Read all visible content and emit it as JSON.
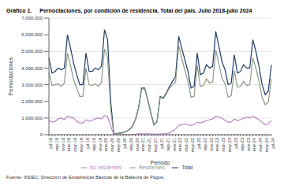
{
  "chart_data": {
    "type": "line",
    "title": "Gráfico 1.",
    "subtitle": "Pernoctaciones, por condición de residencia. Total del país. Julio 2018-julio 2024",
    "x_label": "Período",
    "y_label": "Pernoctaciones",
    "source": "Fuente: INDEC, Dirección de Estadísticas Básicas de la Balanza de Pagos.",
    "categories": [
      "jul-18",
      null,
      "sep-18",
      null,
      "nov-18",
      null,
      "ene-19",
      null,
      "mar-19",
      null,
      "may-19",
      null,
      "jul-19",
      null,
      "sep-19",
      null,
      "nov-19",
      null,
      "ene-20",
      null,
      "mar-20",
      null,
      "may-20",
      null,
      "jul-20",
      null,
      "sep-20",
      null,
      "nov-20",
      null,
      "ene-21",
      null,
      "mar-21",
      null,
      "may-21",
      null,
      "jul-21",
      null,
      "sep-21",
      null,
      "nov-21",
      null,
      "ene-22",
      null,
      "mar-22",
      null,
      "may-22",
      null,
      "jul-22",
      null,
      "sep-22",
      null,
      "nov-22",
      null,
      "ene-23",
      null,
      "mar-23",
      null,
      "may-23",
      null,
      "jul-23",
      null,
      "sep-23",
      null,
      "nov-23",
      null,
      "ene-24",
      null,
      "mar-24",
      null,
      "may-24",
      null,
      "jul-24"
    ],
    "series": [
      {
        "name": "Total",
        "color": "#1f3864",
        "values": [
          4600000,
          3700000,
          3800000,
          4000000,
          3900000,
          4000000,
          6000000,
          5200000,
          4300000,
          3600000,
          3000000,
          3000000,
          4900000,
          3800000,
          3800000,
          4000000,
          3900000,
          4100000,
          6300000,
          5700000,
          2000000,
          50000,
          70000,
          100000,
          120000,
          200000,
          300000,
          500000,
          900000,
          1600000,
          2800000,
          2800000,
          2100000,
          1300000,
          600000,
          800000,
          2300000,
          2200000,
          2500000,
          2900000,
          3200000,
          3500000,
          5900000,
          5200000,
          4500000,
          3800000,
          2800000,
          2900000,
          4900000,
          3600000,
          3700000,
          4200000,
          4000000,
          4100000,
          6200000,
          5300000,
          4400000,
          3900000,
          3000000,
          3100000,
          4800000,
          3700000,
          3800000,
          4200000,
          4000000,
          4000000,
          5700000,
          5000000,
          4100000,
          3000000,
          2400000,
          2600000,
          4200000
        ]
      },
      {
        "name": "Residentes",
        "color": "#8c9a88",
        "values": [
          3750000,
          2950000,
          3000000,
          3050000,
          2900000,
          3100000,
          4900000,
          4150000,
          3300000,
          2800000,
          2300000,
          2300000,
          4000000,
          3000000,
          2950000,
          3050000,
          2900000,
          3150000,
          5150000,
          4600000,
          1500000,
          40000,
          60000,
          90000,
          110000,
          190000,
          290000,
          480000,
          870000,
          1550000,
          2740000,
          2750000,
          2050000,
          1260000,
          570000,
          770000,
          2260000,
          2150000,
          2440000,
          2800000,
          3000000,
          3150000,
          5350000,
          4600000,
          3850000,
          3200000,
          2250000,
          2300000,
          4150000,
          2900000,
          2950000,
          3350000,
          3100000,
          3150000,
          5100000,
          4250000,
          3400000,
          3050000,
          2250000,
          2350000,
          3850000,
          2850000,
          2900000,
          3200000,
          2950000,
          3000000,
          4600000,
          4000000,
          3200000,
          2250000,
          1800000,
          1950000,
          3350000
        ]
      },
      {
        "name": "No residentes",
        "color": "#b48ac0",
        "values": [
          850000,
          750000,
          800000,
          950000,
          1000000,
          900000,
          1100000,
          1050000,
          1000000,
          800000,
          700000,
          700000,
          900000,
          800000,
          850000,
          950000,
          1000000,
          950000,
          1150000,
          1100000,
          500000,
          10000,
          10000,
          10000,
          10000,
          10000,
          10000,
          20000,
          30000,
          50000,
          60000,
          50000,
          50000,
          40000,
          30000,
          30000,
          40000,
          50000,
          60000,
          100000,
          200000,
          350000,
          550000,
          600000,
          650000,
          600000,
          550000,
          600000,
          750000,
          700000,
          750000,
          850000,
          900000,
          950000,
          1100000,
          1050000,
          1000000,
          850000,
          750000,
          750000,
          950000,
          850000,
          900000,
          1000000,
          1050000,
          1000000,
          1100000,
          1000000,
          900000,
          750000,
          600000,
          650000,
          850000
        ]
      }
    ],
    "ylim": [
      0,
      7000000
    ],
    "yticks": [
      0,
      {
        "value": 1000000,
        "label": "1.000.000"
      },
      {
        "value": 2000000,
        "label": "2.000.000"
      },
      {
        "value": 3000000,
        "label": "3.000.000"
      },
      {
        "value": 4000000,
        "label": "4.000.000"
      },
      {
        "value": 5000000,
        "label": "5.000.000"
      },
      {
        "value": 6000000,
        "label": "6.000.000"
      },
      {
        "value": 7000000,
        "label": "7.000.000"
      }
    ],
    "grid": true,
    "legend": "bottom"
  }
}
